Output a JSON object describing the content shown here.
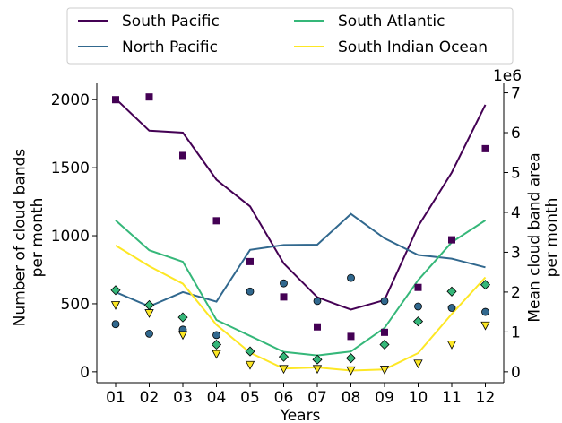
{
  "chart_data": {
    "type": "line",
    "xlabel": "Years",
    "ylabel_left": "Number of cloud bands per month",
    "ylabel_right": "Mean cloud band area per month",
    "right_offset_label": "1e6",
    "categories": [
      "01",
      "02",
      "03",
      "04",
      "05",
      "06",
      "07",
      "08",
      "09",
      "10",
      "11",
      "12"
    ],
    "ylim_left": [
      -80,
      2120
    ],
    "ylim_right": [
      -273000,
      7237000
    ],
    "yticks_left": [
      0,
      500,
      1000,
      1500,
      2000
    ],
    "yticks_right": [
      0,
      1,
      2,
      3,
      4,
      5,
      6,
      7
    ],
    "legend_placement": "top (above plot), 2 columns",
    "grid": false,
    "series": [
      {
        "name": "South Pacific",
        "color": "#440154",
        "marker": "square",
        "line_area": [
          6850000,
          6050000,
          6000000,
          4820000,
          4150000,
          2720000,
          1870000,
          1560000,
          1800000,
          3650000,
          5000000,
          6700000
        ],
        "count": [
          2000,
          2020,
          1590,
          1110,
          810,
          550,
          330,
          260,
          290,
          620,
          970,
          1640
        ]
      },
      {
        "name": "North Pacific",
        "color": "#31688e",
        "marker": "circle",
        "line_area": [
          2000000,
          1640000,
          2000000,
          1760000,
          3060000,
          3180000,
          3190000,
          3960000,
          3350000,
          2930000,
          2840000,
          2620000
        ],
        "count": [
          350,
          280,
          310,
          270,
          590,
          650,
          520,
          690,
          520,
          480,
          470,
          440
        ]
      },
      {
        "name": "South Atlantic",
        "color": "#35b779",
        "marker": "diamond",
        "line_area": [
          3800000,
          3050000,
          2760000,
          1300000,
          900000,
          500000,
          410000,
          510000,
          1100000,
          2300000,
          3250000,
          3800000
        ],
        "count": [
          600,
          490,
          400,
          200,
          150,
          110,
          90,
          100,
          200,
          370,
          590,
          640
        ]
      },
      {
        "name": "South Indian Ocean",
        "color": "#fde725",
        "marker": "triangle-down",
        "line_area": [
          3170000,
          2650000,
          2210000,
          1180000,
          480000,
          80000,
          110000,
          30000,
          60000,
          470000,
          1450000,
          2370000
        ],
        "count": [
          490,
          430,
          270,
          130,
          50,
          20,
          20,
          10,
          15,
          60,
          200,
          340
        ]
      }
    ]
  }
}
